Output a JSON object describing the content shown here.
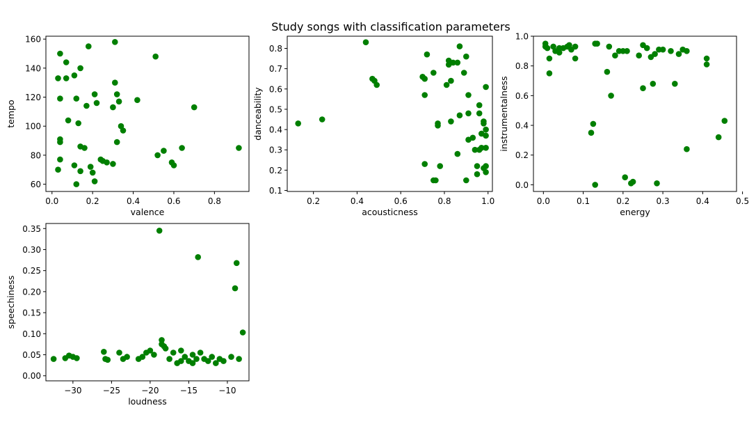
{
  "title": "Study songs with classification parameters",
  "marker_color": "#007f00",
  "chart_data": [
    {
      "type": "scatter",
      "xlabel": "valence",
      "ylabel": "tempo",
      "xlim": [
        -0.03,
        0.97
      ],
      "ylim": [
        55,
        162
      ],
      "xticks": [
        0.0,
        0.2,
        0.4,
        0.6,
        0.8
      ],
      "xtick_labels": [
        "0.0",
        "0.2",
        "0.4",
        "0.6",
        "0.8"
      ],
      "yticks": [
        60,
        80,
        100,
        120,
        140,
        160
      ],
      "ytick_labels": [
        "60",
        "80",
        "100",
        "120",
        "140",
        "160"
      ],
      "grid": false,
      "points": [
        [
          0.04,
          150
        ],
        [
          0.07,
          144
        ],
        [
          0.03,
          133
        ],
        [
          0.07,
          133
        ],
        [
          0.11,
          135
        ],
        [
          0.14,
          140
        ],
        [
          0.18,
          155
        ],
        [
          0.31,
          158
        ],
        [
          0.51,
          148
        ],
        [
          0.04,
          119
        ],
        [
          0.12,
          119
        ],
        [
          0.21,
          122
        ],
        [
          0.17,
          114
        ],
        [
          0.22,
          116
        ],
        [
          0.31,
          130
        ],
        [
          0.32,
          122
        ],
        [
          0.3,
          113
        ],
        [
          0.33,
          117
        ],
        [
          0.42,
          118
        ],
        [
          0.7,
          113
        ],
        [
          0.08,
          104
        ],
        [
          0.13,
          102
        ],
        [
          0.34,
          100
        ],
        [
          0.35,
          97
        ],
        [
          0.04,
          91
        ],
        [
          0.04,
          89
        ],
        [
          0.32,
          89
        ],
        [
          0.14,
          86
        ],
        [
          0.16,
          85
        ],
        [
          0.52,
          80
        ],
        [
          0.55,
          83
        ],
        [
          0.64,
          85
        ],
        [
          0.92,
          85
        ],
        [
          0.04,
          77
        ],
        [
          0.24,
          77
        ],
        [
          0.25,
          76
        ],
        [
          0.27,
          75
        ],
        [
          0.3,
          74
        ],
        [
          0.59,
          75
        ],
        [
          0.6,
          73
        ],
        [
          0.03,
          70
        ],
        [
          0.11,
          73
        ],
        [
          0.14,
          69
        ],
        [
          0.19,
          72
        ],
        [
          0.2,
          68
        ],
        [
          0.21,
          62
        ],
        [
          0.12,
          60
        ]
      ]
    },
    {
      "type": "scatter",
      "xlabel": "acousticness",
      "ylabel": "danceability",
      "xlim": [
        0.08,
        1.02
      ],
      "ylim": [
        0.095,
        0.86
      ],
      "xticks": [
        0.2,
        0.4,
        0.6,
        0.8,
        1.0
      ],
      "xtick_labels": [
        "0.2",
        "0.4",
        "0.6",
        "0.8",
        "1.0"
      ],
      "yticks": [
        0.1,
        0.2,
        0.3,
        0.4,
        0.5,
        0.6,
        0.7,
        0.8
      ],
      "ytick_labels": [
        "0.1",
        "0.2",
        "0.3",
        "0.4",
        "0.5",
        "0.6",
        "0.7",
        "0.8"
      ],
      "grid": false,
      "points": [
        [
          0.13,
          0.43
        ],
        [
          0.24,
          0.45
        ],
        [
          0.44,
          0.83
        ],
        [
          0.47,
          0.65
        ],
        [
          0.48,
          0.64
        ],
        [
          0.49,
          0.62
        ],
        [
          0.72,
          0.77
        ],
        [
          0.7,
          0.66
        ],
        [
          0.71,
          0.65
        ],
        [
          0.75,
          0.68
        ],
        [
          0.71,
          0.57
        ],
        [
          0.71,
          0.23
        ],
        [
          0.75,
          0.15
        ],
        [
          0.76,
          0.15
        ],
        [
          0.78,
          0.22
        ],
        [
          0.77,
          0.42
        ],
        [
          0.77,
          0.43
        ],
        [
          0.81,
          0.62
        ],
        [
          0.82,
          0.74
        ],
        [
          0.82,
          0.72
        ],
        [
          0.83,
          0.64
        ],
        [
          0.84,
          0.73
        ],
        [
          0.86,
          0.73
        ],
        [
          0.87,
          0.81
        ],
        [
          0.89,
          0.68
        ],
        [
          0.9,
          0.76
        ],
        [
          0.83,
          0.44
        ],
        [
          0.87,
          0.47
        ],
        [
          0.86,
          0.28
        ],
        [
          0.9,
          0.15
        ],
        [
          0.91,
          0.57
        ],
        [
          0.91,
          0.48
        ],
        [
          0.91,
          0.35
        ],
        [
          0.93,
          0.36
        ],
        [
          0.94,
          0.3
        ],
        [
          0.95,
          0.22
        ],
        [
          0.95,
          0.18
        ],
        [
          0.96,
          0.52
        ],
        [
          0.96,
          0.48
        ],
        [
          0.96,
          0.3
        ],
        [
          0.97,
          0.38
        ],
        [
          0.97,
          0.31
        ],
        [
          0.98,
          0.44
        ],
        [
          0.98,
          0.43
        ],
        [
          0.99,
          0.4
        ],
        [
          0.99,
          0.37
        ],
        [
          0.99,
          0.61
        ],
        [
          0.99,
          0.31
        ],
        [
          0.99,
          0.22
        ],
        [
          0.99,
          0.19
        ],
        [
          0.98,
          0.21
        ]
      ]
    },
    {
      "type": "scatter",
      "xlabel": "energy",
      "ylabel": "instrumentalness",
      "xlim": [
        -0.025,
        0.485
      ],
      "ylim": [
        -0.045,
        1.0
      ],
      "xticks": [
        0.0,
        0.1,
        0.2,
        0.3,
        0.4,
        0.5
      ],
      "xtick_labels": [
        "0.0",
        "0.1",
        "0.2",
        "0.3",
        "0.4",
        "0.5"
      ],
      "yticks": [
        0.0,
        0.2,
        0.4,
        0.6,
        0.8,
        1.0
      ],
      "ytick_labels": [
        "0.0",
        "0.2",
        "0.4",
        "0.6",
        "0.8",
        "1.0"
      ],
      "grid": false,
      "points": [
        [
          0.005,
          0.95
        ],
        [
          0.005,
          0.93
        ],
        [
          0.01,
          0.92
        ],
        [
          0.015,
          0.85
        ],
        [
          0.015,
          0.75
        ],
        [
          0.025,
          0.93
        ],
        [
          0.03,
          0.9
        ],
        [
          0.04,
          0.89
        ],
        [
          0.04,
          0.92
        ],
        [
          0.05,
          0.92
        ],
        [
          0.06,
          0.93
        ],
        [
          0.065,
          0.94
        ],
        [
          0.07,
          0.91
        ],
        [
          0.08,
          0.93
        ],
        [
          0.08,
          0.85
        ],
        [
          0.13,
          0.95
        ],
        [
          0.135,
          0.95
        ],
        [
          0.165,
          0.93
        ],
        [
          0.18,
          0.87
        ],
        [
          0.19,
          0.9
        ],
        [
          0.2,
          0.9
        ],
        [
          0.21,
          0.9
        ],
        [
          0.24,
          0.87
        ],
        [
          0.25,
          0.94
        ],
        [
          0.26,
          0.92
        ],
        [
          0.27,
          0.86
        ],
        [
          0.28,
          0.88
        ],
        [
          0.29,
          0.91
        ],
        [
          0.3,
          0.91
        ],
        [
          0.32,
          0.9
        ],
        [
          0.34,
          0.88
        ],
        [
          0.35,
          0.91
        ],
        [
          0.36,
          0.9
        ],
        [
          0.41,
          0.85
        ],
        [
          0.41,
          0.81
        ],
        [
          0.16,
          0.76
        ],
        [
          0.17,
          0.6
        ],
        [
          0.25,
          0.65
        ],
        [
          0.275,
          0.68
        ],
        [
          0.33,
          0.68
        ],
        [
          0.12,
          0.35
        ],
        [
          0.125,
          0.41
        ],
        [
          0.13,
          0.0
        ],
        [
          0.205,
          0.05
        ],
        [
          0.22,
          0.01
        ],
        [
          0.225,
          0.02
        ],
        [
          0.285,
          0.01
        ],
        [
          0.36,
          0.24
        ],
        [
          0.44,
          0.32
        ],
        [
          0.455,
          0.43
        ]
      ]
    },
    {
      "type": "scatter",
      "xlabel": "loudness",
      "ylabel": "speechiness",
      "xlim": [
        -33.5,
        -7.2
      ],
      "ylim": [
        -0.012,
        0.362
      ],
      "xticks": [
        -30,
        -25,
        -20,
        -15,
        -10
      ],
      "xtick_labels": [
        "−30",
        "−25",
        "−20",
        "−15",
        "−10"
      ],
      "yticks": [
        0.0,
        0.05,
        0.1,
        0.15,
        0.2,
        0.25,
        0.3,
        0.35
      ],
      "ytick_labels": [
        "0.00",
        "0.05",
        "0.10",
        "0.15",
        "0.20",
        "0.25",
        "0.30",
        "0.35"
      ],
      "grid": false,
      "points": [
        [
          -32.5,
          0.04
        ],
        [
          -31.0,
          0.042
        ],
        [
          -30.5,
          0.048
        ],
        [
          -30.0,
          0.045
        ],
        [
          -29.5,
          0.042
        ],
        [
          -26.0,
          0.057
        ],
        [
          -25.8,
          0.04
        ],
        [
          -25.5,
          0.038
        ],
        [
          -24.0,
          0.055
        ],
        [
          -23.5,
          0.04
        ],
        [
          -23.0,
          0.045
        ],
        [
          -21.5,
          0.04
        ],
        [
          -21.0,
          0.045
        ],
        [
          -20.5,
          0.055
        ],
        [
          -20.0,
          0.06
        ],
        [
          -19.5,
          0.05
        ],
        [
          -18.8,
          0.345
        ],
        [
          -18.5,
          0.085
        ],
        [
          -18.5,
          0.075
        ],
        [
          -18.2,
          0.07
        ],
        [
          -18.0,
          0.065
        ],
        [
          -17.5,
          0.04
        ],
        [
          -17.0,
          0.055
        ],
        [
          -16.5,
          0.03
        ],
        [
          -16.0,
          0.06
        ],
        [
          -16.0,
          0.035
        ],
        [
          -15.5,
          0.045
        ],
        [
          -15.0,
          0.035
        ],
        [
          -14.5,
          0.05
        ],
        [
          -14.5,
          0.03
        ],
        [
          -14.0,
          0.04
        ],
        [
          -13.8,
          0.282
        ],
        [
          -13.5,
          0.055
        ],
        [
          -13.0,
          0.04
        ],
        [
          -12.5,
          0.035
        ],
        [
          -12.0,
          0.045
        ],
        [
          -11.5,
          0.03
        ],
        [
          -11.0,
          0.04
        ],
        [
          -10.5,
          0.035
        ],
        [
          -9.5,
          0.045
        ],
        [
          -9.0,
          0.208
        ],
        [
          -8.8,
          0.268
        ],
        [
          -8.5,
          0.04
        ],
        [
          -8.0,
          0.103
        ]
      ]
    }
  ]
}
